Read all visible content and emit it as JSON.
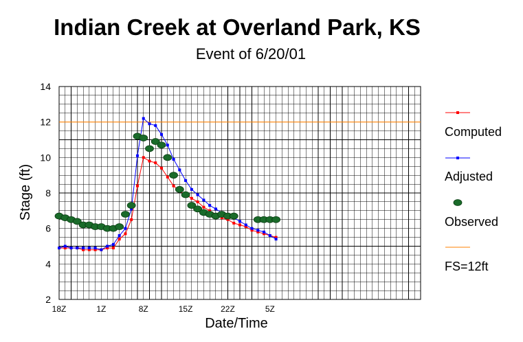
{
  "chart_data": {
    "type": "line",
    "title": "Indian Creek at Overland Park, KS",
    "subtitle": "Event of 6/20/01",
    "xlabel": "Date/Time",
    "ylabel": "Stage (ft)",
    "ylim": [
      2,
      14
    ],
    "yticks": [
      2,
      4,
      6,
      8,
      10,
      12,
      14
    ],
    "xlim": [
      0,
      60
    ],
    "xticks": [
      {
        "x": 0,
        "label": "18Z"
      },
      {
        "x": 7,
        "label": "1Z"
      },
      {
        "x": 14,
        "label": "8Z"
      },
      {
        "x": 21,
        "label": "15Z"
      },
      {
        "x": 28,
        "label": "22Z"
      },
      {
        "x": 35,
        "label": "5Z"
      }
    ],
    "grid": true,
    "legend_position": "right",
    "series": [
      {
        "name": "Computed",
        "color": "#ff0000",
        "style": "line-square",
        "x": [
          0,
          1,
          2,
          3,
          4,
          5,
          6,
          7,
          8,
          9,
          10,
          11,
          12,
          13,
          14,
          15,
          16,
          17,
          18,
          19,
          20,
          21,
          22,
          23,
          24,
          25,
          26,
          27,
          28,
          29,
          30,
          31,
          32,
          33,
          34,
          35,
          36
        ],
        "values": [
          4.9,
          4.9,
          4.9,
          4.9,
          4.8,
          4.8,
          4.8,
          4.8,
          4.9,
          4.9,
          5.4,
          5.7,
          6.5,
          8.4,
          10.0,
          9.8,
          9.7,
          9.4,
          8.9,
          8.4,
          8.1,
          7.9,
          7.7,
          7.5,
          7.2,
          7.0,
          6.8,
          6.6,
          6.5,
          6.3,
          6.2,
          6.1,
          5.9,
          5.8,
          5.7,
          5.6,
          5.5
        ]
      },
      {
        "name": "Adjusted",
        "color": "#0000ff",
        "style": "line-square",
        "x": [
          0,
          1,
          2,
          3,
          4,
          5,
          6,
          7,
          8,
          9,
          10,
          11,
          12,
          13,
          14,
          15,
          16,
          17,
          18,
          19,
          20,
          21,
          22,
          23,
          24,
          25,
          26,
          27,
          28,
          29,
          30,
          31,
          32,
          33,
          34,
          35,
          36
        ],
        "values": [
          4.9,
          5.0,
          4.9,
          4.9,
          4.9,
          4.9,
          4.9,
          4.8,
          5.0,
          5.1,
          5.6,
          6.0,
          7.1,
          10.1,
          12.2,
          11.9,
          11.8,
          11.3,
          10.7,
          9.9,
          9.3,
          8.7,
          8.2,
          7.9,
          7.6,
          7.3,
          7.1,
          6.9,
          6.8,
          6.6,
          6.4,
          6.2,
          6.0,
          5.9,
          5.8,
          5.6,
          5.4
        ]
      },
      {
        "name": "Observed",
        "color": "#1a6b2a",
        "style": "marker-ellipse",
        "x": [
          0,
          1,
          2,
          3,
          4,
          5,
          6,
          7,
          8,
          9,
          10,
          11,
          12,
          13,
          14,
          15,
          16,
          17,
          18,
          19,
          20,
          21,
          22,
          23,
          24,
          25,
          26,
          27,
          28,
          29,
          33,
          34,
          35,
          36
        ],
        "values": [
          6.7,
          6.6,
          6.5,
          6.4,
          6.2,
          6.2,
          6.1,
          6.1,
          6.0,
          6.0,
          6.1,
          6.8,
          7.3,
          11.2,
          11.1,
          10.5,
          10.9,
          10.7,
          10.0,
          9.0,
          8.2,
          7.9,
          7.3,
          7.1,
          6.9,
          6.8,
          6.7,
          6.8,
          6.7,
          6.7,
          6.5,
          6.5,
          6.5,
          6.5
        ]
      },
      {
        "name": "FS=12ft",
        "color": "#ff8000",
        "style": "line",
        "values": [
          12,
          12
        ]
      }
    ]
  }
}
